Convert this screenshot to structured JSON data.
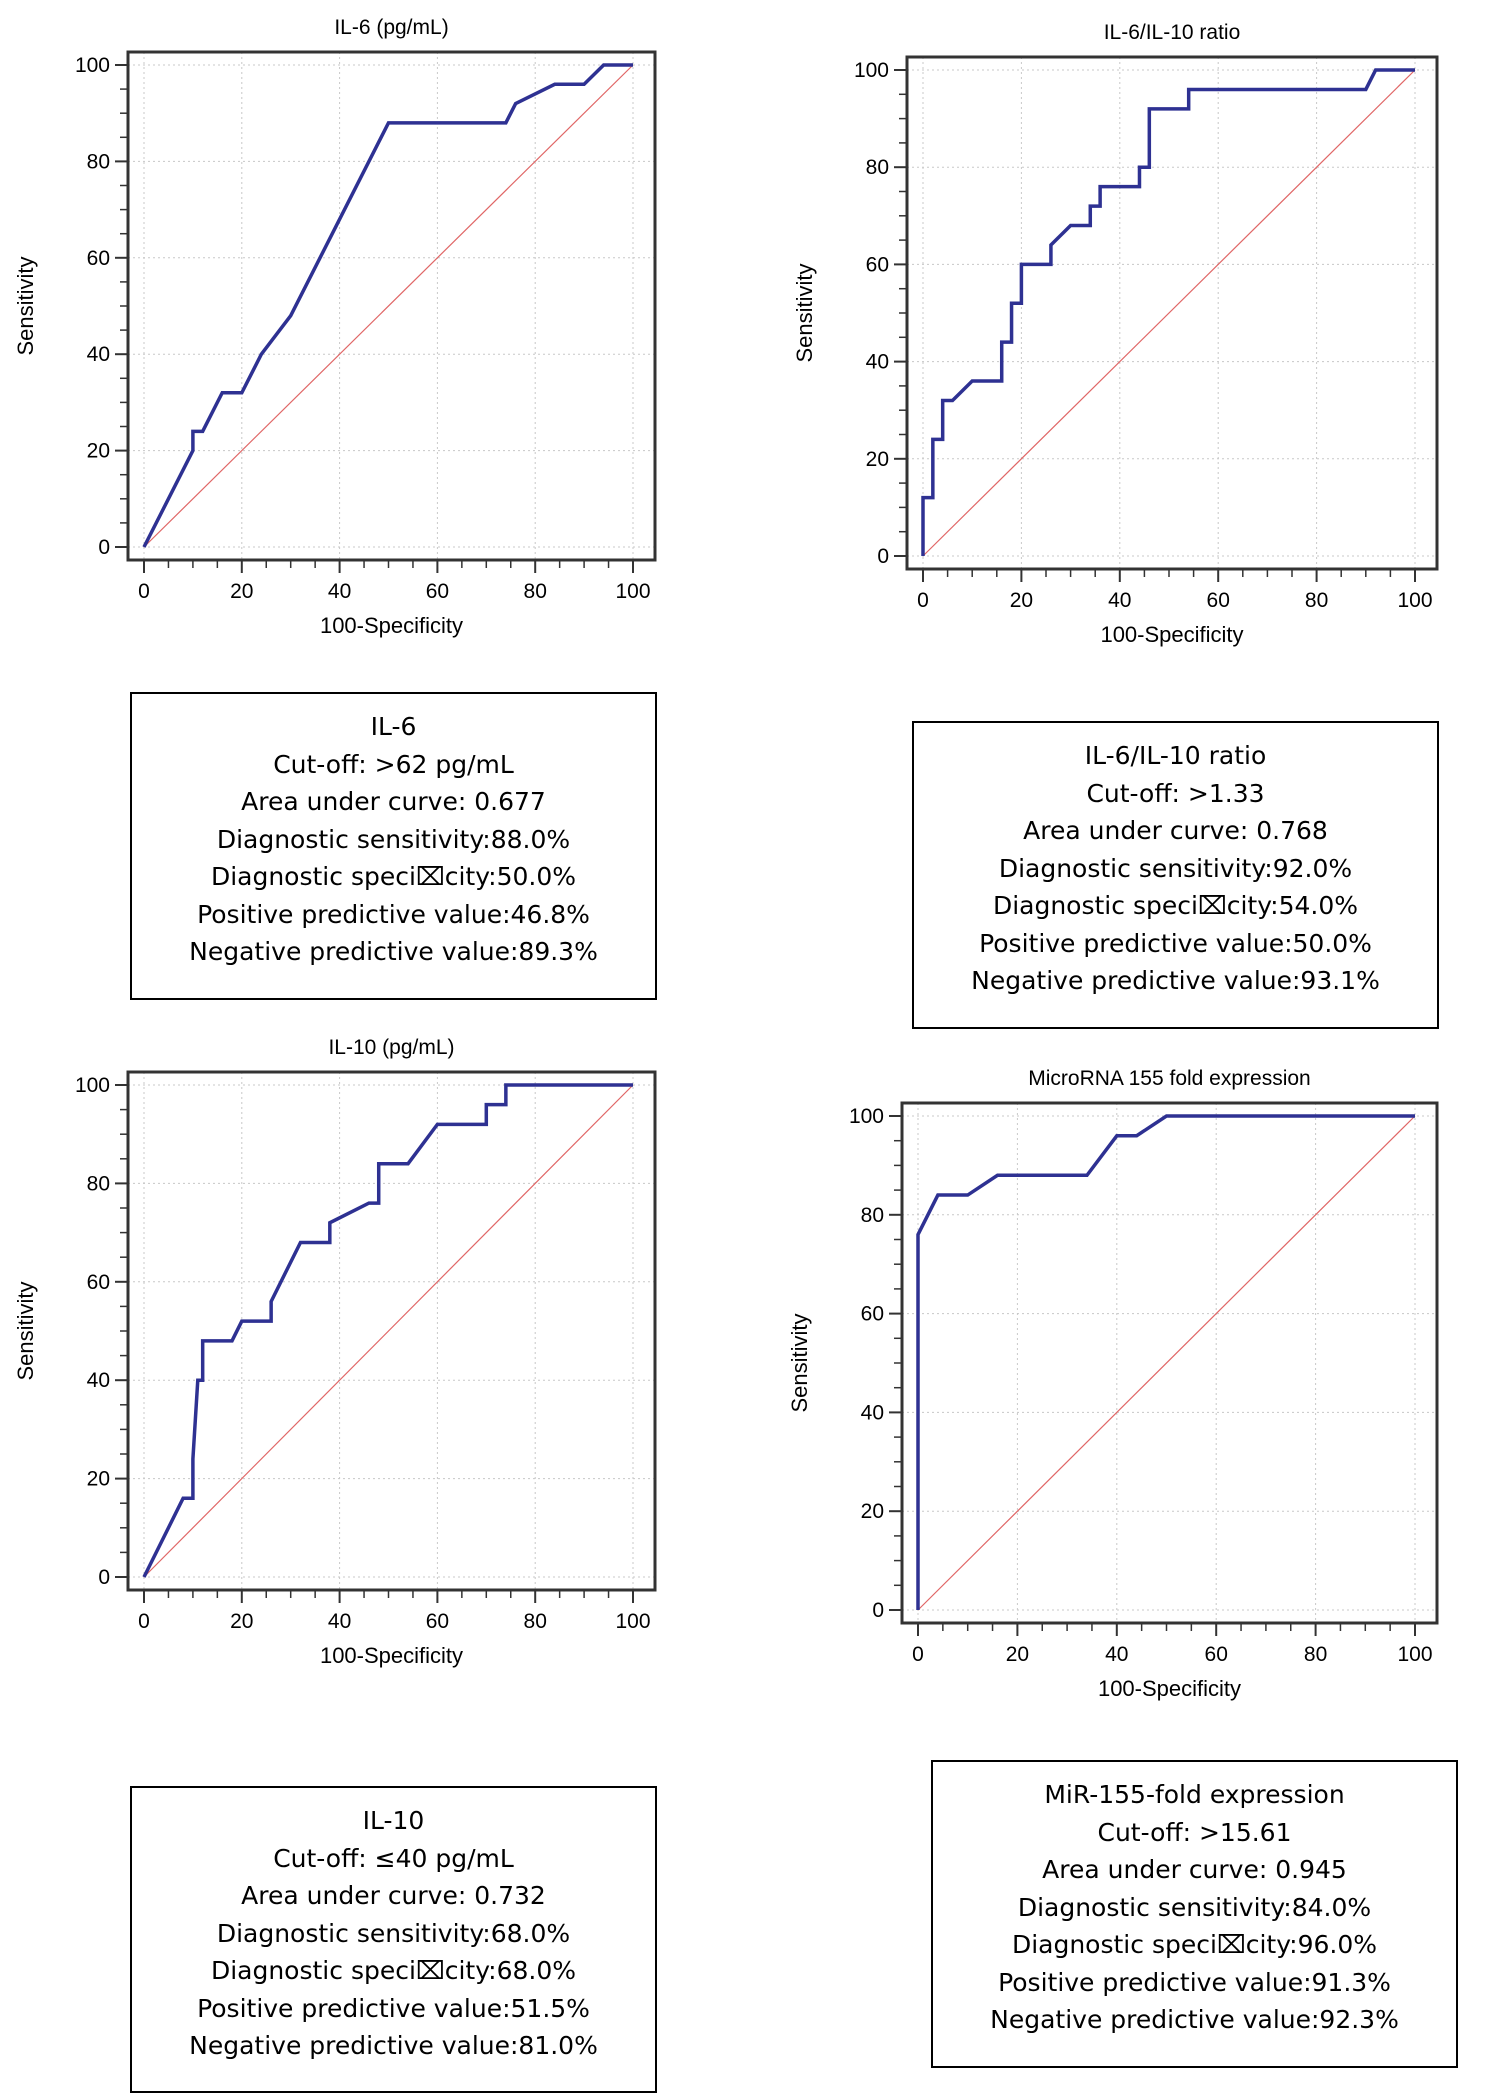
{
  "chart_data": [
    {
      "type": "line",
      "title": "IL-6 (pg/mL)",
      "xlabel": "100-Specificity",
      "ylabel": "Sensitivity",
      "xlim": [
        0,
        100
      ],
      "ylim": [
        0,
        100
      ],
      "ticks": [
        "0",
        "20",
        "40",
        "60",
        "80",
        "100"
      ],
      "grid": true,
      "series": [
        {
          "color": "#2e3192",
          "points": [
            [
              0,
              0
            ],
            [
              10,
              20
            ],
            [
              10,
              24
            ],
            [
              12,
              24
            ],
            [
              16,
              32
            ],
            [
              20,
              32
            ],
            [
              24,
              40
            ],
            [
              30,
              48
            ],
            [
              50,
              88
            ],
            [
              74,
              88
            ],
            [
              76,
              92
            ],
            [
              84,
              96
            ],
            [
              90,
              96
            ],
            [
              94,
              100
            ],
            [
              100,
              100
            ]
          ]
        },
        {
          "color": "#e06666",
          "points": [
            [
              0,
              0
            ],
            [
              100,
              100
            ]
          ]
        }
      ]
    },
    {
      "type": "line",
      "title": "IL-6/IL-10 ratio",
      "xlabel": "100-Specificity",
      "ylabel": "Sensitivity",
      "xlim": [
        0,
        100
      ],
      "ylim": [
        0,
        100
      ],
      "ticks": [
        "0",
        "20",
        "40",
        "60",
        "80",
        "100"
      ],
      "grid": true,
      "series": [
        {
          "color": "#2e3192",
          "points": [
            [
              0,
              0
            ],
            [
              0,
              12
            ],
            [
              2,
              12
            ],
            [
              2,
              24
            ],
            [
              4,
              24
            ],
            [
              4,
              32
            ],
            [
              6,
              32
            ],
            [
              10,
              36
            ],
            [
              16,
              36
            ],
            [
              16,
              44
            ],
            [
              18,
              44
            ],
            [
              18,
              52
            ],
            [
              20,
              52
            ],
            [
              20,
              60
            ],
            [
              26,
              60
            ],
            [
              26,
              64
            ],
            [
              30,
              68
            ],
            [
              34,
              68
            ],
            [
              34,
              72
            ],
            [
              36,
              72
            ],
            [
              36,
              76
            ],
            [
              44,
              76
            ],
            [
              44,
              80
            ],
            [
              46,
              80
            ],
            [
              46,
              92
            ],
            [
              54,
              92
            ],
            [
              54,
              96
            ],
            [
              90,
              96
            ],
            [
              92,
              100
            ],
            [
              100,
              100
            ]
          ]
        },
        {
          "color": "#e06666",
          "points": [
            [
              0,
              0
            ],
            [
              100,
              100
            ]
          ]
        }
      ]
    },
    {
      "type": "line",
      "title": "IL-10 (pg/mL)",
      "xlabel": "100-Specificity",
      "ylabel": "Sensitivity",
      "xlim": [
        0,
        100
      ],
      "ylim": [
        0,
        100
      ],
      "ticks": [
        "0",
        "20",
        "40",
        "60",
        "80",
        "100"
      ],
      "grid": true,
      "series": [
        {
          "color": "#2e3192",
          "points": [
            [
              0,
              0
            ],
            [
              8,
              16
            ],
            [
              10,
              16
            ],
            [
              10,
              24
            ],
            [
              11,
              40
            ],
            [
              12,
              40
            ],
            [
              12,
              48
            ],
            [
              18,
              48
            ],
            [
              20,
              52
            ],
            [
              26,
              52
            ],
            [
              26,
              56
            ],
            [
              32,
              68
            ],
            [
              38,
              68
            ],
            [
              38,
              72
            ],
            [
              46,
              76
            ],
            [
              48,
              76
            ],
            [
              48,
              84
            ],
            [
              54,
              84
            ],
            [
              60,
              92
            ],
            [
              70,
              92
            ],
            [
              70,
              96
            ],
            [
              74,
              96
            ],
            [
              74,
              100
            ],
            [
              100,
              100
            ]
          ]
        },
        {
          "color": "#e06666",
          "points": [
            [
              0,
              0
            ],
            [
              100,
              100
            ]
          ]
        }
      ]
    },
    {
      "type": "line",
      "title": "MicroRNA 155 fold expression",
      "xlabel": "100-Specificity",
      "ylabel": "Sensitivity",
      "xlim": [
        0,
        100
      ],
      "ylim": [
        0,
        100
      ],
      "ticks": [
        "0",
        "20",
        "40",
        "60",
        "80",
        "100"
      ],
      "grid": true,
      "series": [
        {
          "color": "#2e3192",
          "points": [
            [
              0,
              0
            ],
            [
              0,
              76
            ],
            [
              2,
              80
            ],
            [
              4,
              84
            ],
            [
              10,
              84
            ],
            [
              16,
              88
            ],
            [
              34,
              88
            ],
            [
              40,
              96
            ],
            [
              44,
              96
            ],
            [
              50,
              100
            ],
            [
              100,
              100
            ]
          ]
        },
        {
          "color": "#e06666",
          "points": [
            [
              0,
              0
            ],
            [
              100,
              100
            ]
          ]
        }
      ]
    }
  ],
  "info_boxes": [
    {
      "lines": [
        "IL-6",
        "Cut-off: >62 pg/mL",
        "Area under curve: 0.677",
        "Diagnostic sensitivity:88.0%",
        "Diagnostic speci⌧city:50.0%",
        "Positive predictive value:46.8%",
        "Negative predictive value:89.3%"
      ]
    },
    {
      "lines": [
        "IL-6/IL-10 ratio",
        "Cut-off: >1.33",
        "Area under curve: 0.768",
        "Diagnostic sensitivity:92.0%",
        "Diagnostic speci⌧city:54.0%",
        "Positive predictive value:50.0%",
        "Negative predictive value:93.1%"
      ]
    },
    {
      "lines": [
        "IL-10",
        "Cut-off: ≤40 pg/mL",
        "Area under curve: 0.732",
        "Diagnostic sensitivity:68.0%",
        "Diagnostic speci⌧city:68.0%",
        "Positive predictive value:51.5%",
        "Negative predictive value:81.0%"
      ]
    },
    {
      "lines": [
        "MiR-155-fold expression",
        "Cut-off: >15.61",
        "Area under curve: 0.945",
        "Diagnostic sensitivity:84.0%",
        "Diagnostic speci⌧city:96.0%",
        "Positive predictive value:91.3%",
        "Negative predictive value:92.3%"
      ]
    }
  ]
}
